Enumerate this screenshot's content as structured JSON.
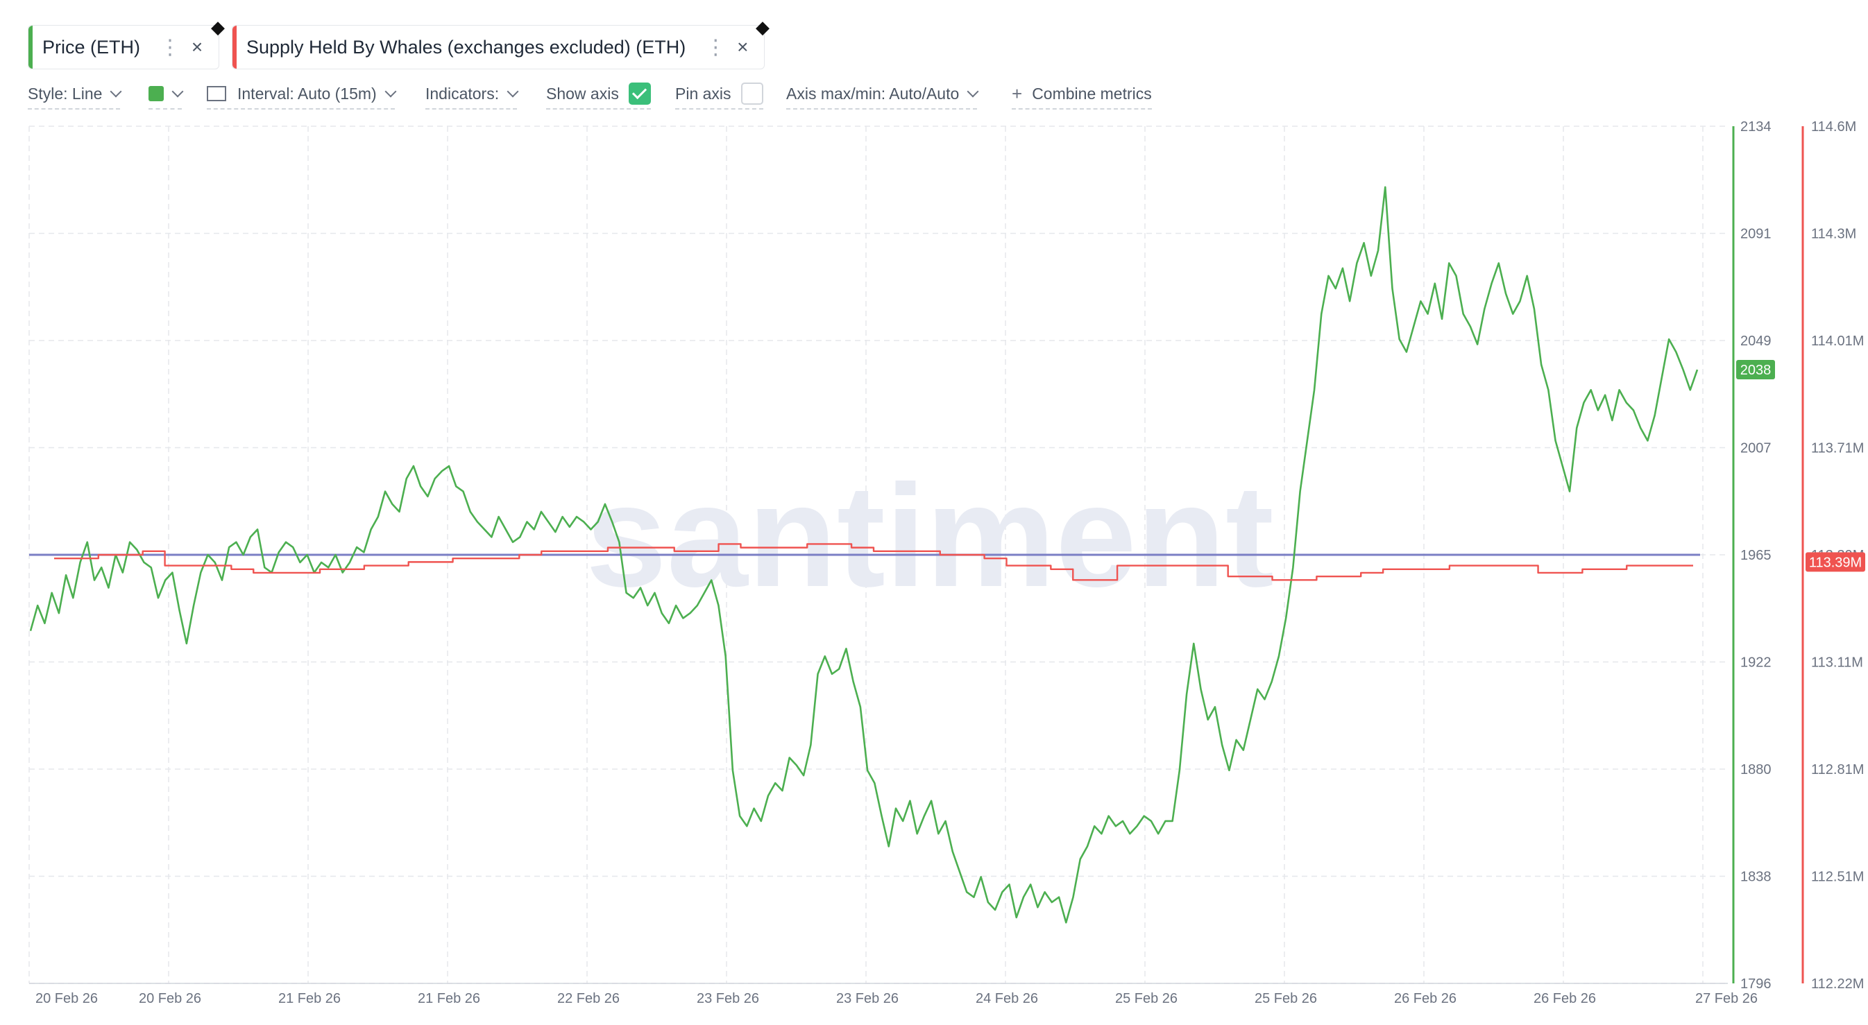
{
  "metrics": [
    {
      "label": "Price (ETH)",
      "color": "#4caf50",
      "menu_icon": "kebab-icon",
      "close_icon": "close-icon"
    },
    {
      "label": "Supply Held By Whales (exchanges excluded) (ETH)",
      "color": "#ef5350",
      "menu_icon": "kebab-icon",
      "close_icon": "close-icon"
    }
  ],
  "toolbar": {
    "style": "Style: Line",
    "color_color": "#4caf50",
    "interval": "Interval: Auto (15m)",
    "indicators": "Indicators:",
    "show_axis": "Show axis",
    "show_axis_checked": true,
    "pin_axis": "Pin axis",
    "pin_axis_checked": false,
    "axis_maxmin": "Axis max/min: Auto/Auto",
    "combine": "Combine metrics"
  },
  "chart_data": {
    "type": "line",
    "watermark": "santiment",
    "x_tick_labels": [
      "20 Feb 26",
      "20 Feb 26",
      "21 Feb 26",
      "21 Feb 26",
      "22 Feb 26",
      "23 Feb 26",
      "23 Feb 26",
      "24 Feb 26",
      "25 Feb 26",
      "25 Feb 26",
      "26 Feb 26",
      "26 Feb 26",
      "27 Feb 26"
    ],
    "y_left": {
      "ticks": [
        "2134",
        "2091",
        "2049",
        "2007",
        "1965",
        "1922",
        "1880",
        "1838",
        "1796"
      ],
      "min": 1796,
      "max": 2134,
      "current": "2038",
      "color": "#4caf50"
    },
    "y_right": {
      "ticks": [
        "114.6M",
        "114.3M",
        "114.01M",
        "113.71M",
        "113.39M",
        "113.11M",
        "112.81M",
        "112.51M",
        "112.22M"
      ],
      "min": 112.22,
      "max": 114.6,
      "current": "113.39M",
      "color": "#ef5350"
    },
    "reference_line": {
      "value": 1965,
      "color": "#7b7fc4"
    },
    "series": [
      {
        "color": "#4caf50",
        "axis": "left",
        "values": [
          1935,
          1945,
          1938,
          1950,
          1942,
          1957,
          1948,
          1962,
          1970,
          1955,
          1960,
          1952,
          1965,
          1958,
          1970,
          1967,
          1962,
          1960,
          1948,
          1955,
          1958,
          1943,
          1930,
          1945,
          1958,
          1965,
          1962,
          1955,
          1968,
          1970,
          1965,
          1972,
          1975,
          1960,
          1958,
          1966,
          1970,
          1968,
          1962,
          1965,
          1958,
          1962,
          1960,
          1965,
          1958,
          1962,
          1968,
          1966,
          1975,
          1980,
          1990,
          1985,
          1982,
          1995,
          2000,
          1992,
          1988,
          1995,
          1998,
          2000,
          1992,
          1990,
          1982,
          1978,
          1975,
          1972,
          1980,
          1975,
          1970,
          1972,
          1978,
          1975,
          1982,
          1978,
          1974,
          1980,
          1976,
          1980,
          1978,
          1975,
          1978,
          1985,
          1978,
          1970,
          1950,
          1948,
          1952,
          1945,
          1950,
          1942,
          1938,
          1945,
          1940,
          1942,
          1945,
          1950,
          1955,
          1945,
          1925,
          1880,
          1862,
          1858,
          1865,
          1860,
          1870,
          1875,
          1872,
          1885,
          1882,
          1878,
          1890,
          1918,
          1925,
          1918,
          1920,
          1928,
          1915,
          1905,
          1880,
          1875,
          1862,
          1850,
          1865,
          1860,
          1868,
          1855,
          1862,
          1868,
          1855,
          1860,
          1848,
          1840,
          1832,
          1830,
          1838,
          1828,
          1825,
          1832,
          1835,
          1822,
          1830,
          1835,
          1826,
          1832,
          1828,
          1830,
          1820,
          1830,
          1845,
          1850,
          1858,
          1855,
          1862,
          1858,
          1860,
          1855,
          1858,
          1862,
          1860,
          1855,
          1860,
          1860,
          1880,
          1910,
          1930,
          1912,
          1900,
          1905,
          1890,
          1880,
          1892,
          1888,
          1900,
          1912,
          1908,
          1915,
          1925,
          1940,
          1960,
          1990,
          2010,
          2030,
          2060,
          2075,
          2070,
          2078,
          2065,
          2080,
          2088,
          2075,
          2085,
          2110,
          2070,
          2050,
          2045,
          2055,
          2065,
          2060,
          2072,
          2058,
          2080,
          2075,
          2060,
          2055,
          2048,
          2062,
          2072,
          2080,
          2068,
          2060,
          2065,
          2075,
          2062,
          2040,
          2030,
          2010,
          2000,
          1990,
          2015,
          2025,
          2030,
          2022,
          2028,
          2018,
          2030,
          2025,
          2022,
          2015,
          2010,
          2020,
          2035,
          2050,
          2045,
          2038,
          2030,
          2038
        ]
      },
      {
        "color": "#ef5350",
        "axis": "right",
        "values": [
          113.4,
          113.4,
          113.41,
          113.41,
          113.42,
          113.38,
          113.38,
          113.38,
          113.37,
          113.36,
          113.36,
          113.36,
          113.37,
          113.37,
          113.38,
          113.38,
          113.39,
          113.39,
          113.4,
          113.4,
          113.4,
          113.41,
          113.42,
          113.42,
          113.42,
          113.43,
          113.43,
          113.43,
          113.42,
          113.42,
          113.44,
          113.43,
          113.43,
          113.43,
          113.44,
          113.44,
          113.43,
          113.42,
          113.42,
          113.42,
          113.41,
          113.41,
          113.4,
          113.38,
          113.38,
          113.37,
          113.34,
          113.34,
          113.38,
          113.38,
          113.38,
          113.38,
          113.38,
          113.35,
          113.35,
          113.34,
          113.34,
          113.35,
          113.35,
          113.36,
          113.37,
          113.37,
          113.37,
          113.38,
          113.38,
          113.38,
          113.38,
          113.36,
          113.36,
          113.37,
          113.37,
          113.38,
          113.38,
          113.38,
          113.38
        ]
      }
    ]
  }
}
